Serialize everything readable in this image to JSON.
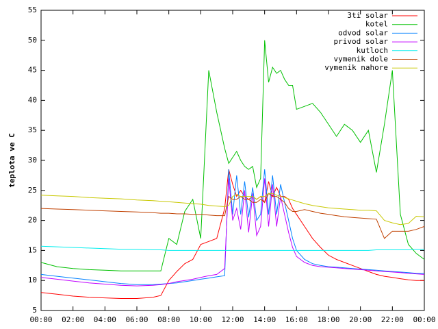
{
  "chart_data": {
    "type": "line",
    "y_label": "teplota ve C",
    "xlim": [
      0,
      24
    ],
    "xticks": [
      {
        "value": 0,
        "label": "00:00"
      },
      {
        "value": 2,
        "label": "02:00"
      },
      {
        "value": 4,
        "label": "04:00"
      },
      {
        "value": 6,
        "label": "06:00"
      },
      {
        "value": 8,
        "label": "08:00"
      },
      {
        "value": 10,
        "label": "10:00"
      },
      {
        "value": 12,
        "label": "12:00"
      },
      {
        "value": 14,
        "label": "14:00"
      },
      {
        "value": 16,
        "label": "16:00"
      },
      {
        "value": 18,
        "label": "18:00"
      },
      {
        "value": 20,
        "label": "20:00"
      },
      {
        "value": 22,
        "label": "22:00"
      },
      {
        "value": 24,
        "label": "00:00"
      }
    ],
    "ylim": [
      5,
      55
    ],
    "yticks": [
      5,
      10,
      15,
      20,
      25,
      30,
      35,
      40,
      45,
      50,
      55
    ],
    "legend": "top-right",
    "x": [
      0,
      1,
      2,
      3,
      4,
      5,
      6,
      7,
      7.5,
      8,
      8.5,
      9,
      9.5,
      10,
      10.5,
      11,
      11.5,
      11.75,
      12,
      12.25,
      12.5,
      12.75,
      13,
      13.25,
      13.5,
      13.75,
      14,
      14.25,
      14.5,
      14.75,
      15,
      15.25,
      15.5,
      15.75,
      16,
      16.5,
      17,
      17.5,
      18,
      18.5,
      19,
      19.5,
      20,
      20.5,
      21,
      21.5,
      22,
      22.5,
      23,
      23.5,
      24
    ],
    "series": [
      {
        "name": "3ti solar",
        "color": "#ff0000",
        "values": [
          8,
          7.7,
          7.4,
          7.2,
          7.1,
          7,
          7,
          7.2,
          7.5,
          10,
          11.5,
          12.8,
          13.5,
          16,
          16.5,
          17,
          22,
          28.5,
          26,
          24,
          25,
          24,
          23.5,
          24,
          23.5,
          24,
          23,
          26.5,
          24,
          25.5,
          24,
          24,
          23.5,
          22,
          21,
          19,
          17,
          15.5,
          14.2,
          13.5,
          13,
          12.5,
          12,
          11.5,
          11,
          10.7,
          10.5,
          10.3,
          10.1,
          10,
          10
        ]
      },
      {
        "name": "kotel",
        "color": "#00c000",
        "values": [
          13,
          12.3,
          12,
          11.8,
          11.7,
          11.6,
          11.6,
          11.6,
          11.6,
          17,
          16,
          21.5,
          23.5,
          17,
          45,
          38,
          32,
          29.5,
          30.5,
          31.5,
          30,
          29,
          28.5,
          29,
          25.5,
          27,
          50,
          43,
          45.5,
          44.5,
          45,
          43.5,
          42.5,
          42.5,
          38.5,
          39,
          39.5,
          38,
          36,
          34,
          36,
          35,
          33,
          35,
          28,
          36,
          45,
          21,
          16,
          14.5,
          13.5
        ]
      },
      {
        "name": "odvod solar",
        "color": "#0080ff",
        "values": [
          11,
          10.7,
          10.4,
          10.1,
          9.8,
          9.5,
          9.3,
          9.3,
          9.4,
          9.5,
          9.6,
          9.8,
          10,
          10.2,
          10.4,
          10.6,
          10.8,
          28.5,
          21,
          27.5,
          21,
          26.5,
          20.5,
          25.5,
          20,
          21,
          28.5,
          21,
          27.5,
          21,
          26,
          23,
          20,
          17,
          15,
          13.5,
          12.8,
          12.5,
          12.3,
          12.2,
          12.1,
          12,
          11.9,
          11.8,
          11.7,
          11.6,
          11.5,
          11.4,
          11.3,
          11.2,
          11.2
        ]
      },
      {
        "name": "privod solar",
        "color": "#c000ff",
        "values": [
          10.5,
          10.2,
          9.9,
          9.6,
          9.4,
          9.2,
          9.1,
          9.2,
          9.3,
          9.5,
          9.8,
          10,
          10.2,
          10.5,
          10.8,
          11,
          12,
          27,
          20,
          22,
          18.5,
          25,
          18,
          24.5,
          17.5,
          19,
          27,
          19,
          26,
          19,
          24,
          21,
          18,
          15.5,
          14,
          13,
          12.5,
          12.3,
          12.2,
          12.1,
          12,
          11.9,
          11.8,
          11.7,
          11.6,
          11.5,
          11.4,
          11.3,
          11.2,
          11.1,
          11
        ]
      },
      {
        "name": "kutloch",
        "color": "#00eeee",
        "values": [
          15.7,
          15.6,
          15.5,
          15.4,
          15.3,
          15.2,
          15.2,
          15.1,
          15.1,
          15,
          15,
          15,
          15,
          15,
          15,
          15,
          15,
          15,
          15,
          15,
          15,
          15,
          15,
          15,
          15,
          15,
          15,
          15,
          15,
          15,
          15,
          15,
          15,
          15,
          15,
          15,
          15,
          15,
          15,
          15,
          15,
          15,
          15,
          15,
          15.1,
          15.1,
          15.1,
          15.1,
          15.1,
          15.2,
          15.2
        ]
      },
      {
        "name": "vymenik dole",
        "color": "#c04000",
        "values": [
          22,
          21.9,
          21.8,
          21.7,
          21.6,
          21.5,
          21.4,
          21.3,
          21.2,
          21.2,
          21.1,
          21.1,
          21,
          21,
          20.9,
          20.8,
          20.8,
          24,
          23.5,
          23.5,
          24,
          23.5,
          23.5,
          23,
          23,
          23.5,
          23,
          24.5,
          24,
          24,
          23.5,
          23,
          22,
          21.5,
          21.5,
          21.8,
          21.5,
          21.2,
          21,
          20.8,
          20.6,
          20.5,
          20.4,
          20.3,
          20.2,
          17,
          18.2,
          18.2,
          18.2,
          18.5,
          19
        ]
      },
      {
        "name": "vymenik nahore",
        "color": "#c8c800",
        "values": [
          24.2,
          24.1,
          24,
          23.8,
          23.7,
          23.6,
          23.4,
          23.3,
          23.2,
          23.1,
          23,
          22.9,
          22.8,
          22.7,
          22.5,
          22.4,
          22.3,
          22.5,
          24,
          24.3,
          24,
          24,
          24,
          24,
          23.5,
          24,
          24,
          24.5,
          24.5,
          24.2,
          24,
          23.8,
          23.6,
          23.4,
          23.2,
          22.8,
          22.5,
          22.3,
          22.1,
          22,
          21.9,
          21.8,
          21.7,
          21.7,
          21.6,
          20,
          19.6,
          19.3,
          19.5,
          20.7,
          20.6
        ]
      }
    ]
  }
}
